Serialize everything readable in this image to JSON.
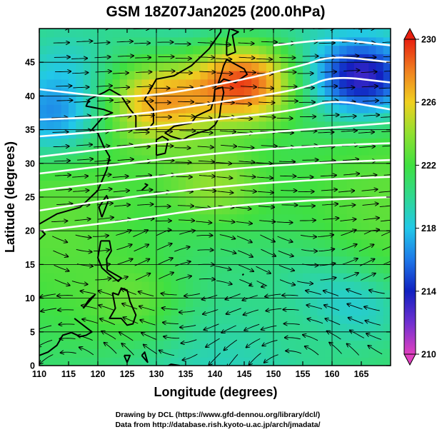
{
  "chart_data": {
    "type": "heatmap",
    "title": "GSM 18Z07Jan2025 (200.0hPa)",
    "xlabel": "Longitude (degrees)",
    "ylabel": "Latitude  (degrees)",
    "xlim": [
      110,
      170
    ],
    "ylim": [
      0,
      50
    ],
    "xticks": [
      110,
      115,
      120,
      125,
      130,
      135,
      140,
      145,
      150,
      155,
      160,
      165
    ],
    "yticks": [
      0,
      5,
      10,
      15,
      20,
      25,
      30,
      35,
      40,
      45
    ],
    "grid": true,
    "colorbar": {
      "min": 210,
      "max": 230,
      "ticks": [
        210,
        214,
        218,
        222,
        226,
        230
      ],
      "colors": [
        "#e040c0",
        "#7030d0",
        "#1020c0",
        "#1e78e8",
        "#22c8e8",
        "#30d890",
        "#40e040",
        "#90e030",
        "#f0d020",
        "#f08020",
        "#e82010"
      ]
    },
    "temperature_features": [
      {
        "lon": 145,
        "lat": 42,
        "value": 229,
        "kind": "max"
      },
      {
        "lon": 130,
        "lat": 39,
        "value": 227,
        "kind": "max"
      },
      {
        "lon": 165,
        "lat": 43,
        "value": 213,
        "kind": "min"
      },
      {
        "lon": 112,
        "lat": 37,
        "value": 217,
        "kind": "min"
      },
      {
        "lon": 115,
        "lat": 45,
        "value": 219,
        "kind": "min"
      },
      {
        "lon": 140,
        "lat": 27,
        "value": 224,
        "kind": "max"
      },
      {
        "lon": 125,
        "lat": 10,
        "value": 223,
        "kind": "max"
      },
      {
        "lon": 155,
        "lat": 12,
        "value": 220,
        "kind": "min"
      },
      {
        "lon": 165,
        "lat": 8,
        "value": 219,
        "kind": "min"
      }
    ],
    "jet_isotachs": [
      {
        "points": [
          [
            110,
            20
          ],
          [
            125,
            21.5
          ],
          [
            140,
            23.5
          ],
          [
            155,
            24.5
          ],
          [
            170,
            25
          ]
        ]
      },
      {
        "points": [
          [
            110,
            23
          ],
          [
            125,
            25
          ],
          [
            140,
            26.5
          ],
          [
            155,
            27.5
          ],
          [
            170,
            28
          ]
        ]
      },
      {
        "points": [
          [
            110,
            26
          ],
          [
            125,
            27.5
          ],
          [
            140,
            29
          ],
          [
            155,
            30
          ],
          [
            170,
            30.5
          ]
        ]
      },
      {
        "points": [
          [
            110,
            28.5
          ],
          [
            125,
            30
          ],
          [
            140,
            31.5
          ],
          [
            155,
            32.5
          ],
          [
            170,
            33
          ]
        ]
      },
      {
        "points": [
          [
            110,
            31
          ],
          [
            125,
            32.5
          ],
          [
            140,
            34
          ],
          [
            155,
            35
          ],
          [
            170,
            36
          ]
        ]
      },
      {
        "points": [
          [
            110,
            34
          ],
          [
            125,
            35
          ],
          [
            140,
            36.5
          ],
          [
            155,
            38
          ],
          [
            160,
            39.5
          ],
          [
            170,
            38
          ]
        ]
      },
      {
        "points": [
          [
            110,
            36.5
          ],
          [
            125,
            37
          ],
          [
            140,
            39
          ],
          [
            155,
            41
          ],
          [
            160,
            43
          ],
          [
            170,
            42
          ]
        ]
      },
      {
        "points": [
          [
            110,
            41
          ],
          [
            125,
            39.5
          ],
          [
            140,
            41.5
          ],
          [
            155,
            44.5
          ],
          [
            160,
            46
          ],
          [
            170,
            45
          ]
        ]
      },
      {
        "points": [
          [
            150,
            47.5
          ],
          [
            160,
            48.5
          ],
          [
            170,
            47.5
          ]
        ]
      }
    ],
    "flow": {
      "description_free": true,
      "regimes": [
        {
          "lat_min": 20,
          "lat_max": 50,
          "dir_deg": 0
        },
        {
          "lat_min": 12,
          "lat_max": 20,
          "dir_deg": 0
        },
        {
          "lat_min": 0,
          "lat_max": 12,
          "dir_deg": 180
        }
      ]
    }
  },
  "footer": {
    "line1": "Drawing by DCL (https://www.gfd-dennou.org/library/dcl/)",
    "line2": "Data from http://database.rish.kyoto-u.ac.jp/arch/jmadata/"
  }
}
